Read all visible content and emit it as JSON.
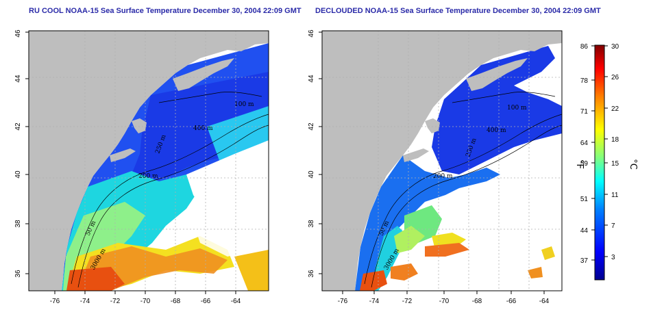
{
  "panels": [
    {
      "id": "left",
      "title": "RU COOL NOAA-15 Sea Surface Temperature December 30, 2004 22:09 GMT"
    },
    {
      "id": "right",
      "title": "DECLOUDED NOAA-15 Sea Surface Temperature December 30, 2004 22:09 GMT"
    }
  ],
  "axes": {
    "lon_ticks": [
      "-76",
      "-74",
      "-72",
      "-70",
      "-68",
      "-66",
      "-64"
    ],
    "lat_ticks": [
      "36",
      "38",
      "40",
      "42",
      "44",
      "46"
    ]
  },
  "contour_labels": [
    "100 m",
    "400 m",
    "200 m",
    "250 m",
    "50 m",
    "3000 m"
  ],
  "colorbar": {
    "fahrenheit_ticks": [
      "86",
      "78",
      "71",
      "64",
      "59",
      "51",
      "44",
      "37"
    ],
    "celsius_ticks": [
      "30",
      "26",
      "22",
      "18",
      "15",
      "11",
      "7",
      "3"
    ],
    "fahrenheit_unit": "°F",
    "celsius_unit": "°C",
    "colors": [
      "#00008f",
      "#0000ff",
      "#0080ff",
      "#00ffff",
      "#80ff80",
      "#ffff00",
      "#ff8000",
      "#ff0000",
      "#800000"
    ]
  },
  "palette": {
    "land": "#bebebe",
    "title": "#2a2aa8",
    "grid": "#b0b0b0"
  }
}
